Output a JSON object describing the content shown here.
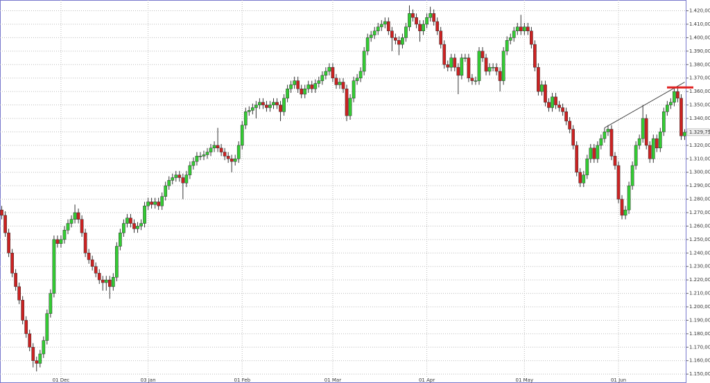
{
  "chart_data": {
    "type": "candlestick",
    "colors": {
      "up": "#33cc33",
      "down": "#cc2222"
    },
    "ylim": [
      1147,
      1428
    ],
    "grid": true,
    "yticks": [
      {
        "value": 1150,
        "label": "1.150,00"
      },
      {
        "value": 1160,
        "label": "1.160,00"
      },
      {
        "value": 1170,
        "label": "1.170,00"
      },
      {
        "value": 1180,
        "label": "1.180,00"
      },
      {
        "value": 1190,
        "label": "1.190,00"
      },
      {
        "value": 1200,
        "label": "1.200,00"
      },
      {
        "value": 1210,
        "label": "1.210,00"
      },
      {
        "value": 1220,
        "label": "1.220,00"
      },
      {
        "value": 1230,
        "label": "1.230,00"
      },
      {
        "value": 1240,
        "label": "1.240,00"
      },
      {
        "value": 1250,
        "label": "1.250,00"
      },
      {
        "value": 1260,
        "label": "1.260,00"
      },
      {
        "value": 1270,
        "label": "1.270,00"
      },
      {
        "value": 1280,
        "label": "1.280,00"
      },
      {
        "value": 1290,
        "label": "1.290,00"
      },
      {
        "value": 1300,
        "label": "1.300,00"
      },
      {
        "value": 1310,
        "label": "1.310,00"
      },
      {
        "value": 1320,
        "label": "1.320,00"
      },
      {
        "value": 1330,
        "label": "1.330,00"
      },
      {
        "value": 1340,
        "label": "1.340,00"
      },
      {
        "value": 1350,
        "label": "1.350,00"
      },
      {
        "value": 1360,
        "label": "1.360,00"
      },
      {
        "value": 1370,
        "label": "1.370,00"
      },
      {
        "value": 1380,
        "label": "1.380,00"
      },
      {
        "value": 1390,
        "label": "1.390,00"
      },
      {
        "value": 1400,
        "label": "1.400,00"
      },
      {
        "value": 1410,
        "label": "1.410,00"
      },
      {
        "value": 1420,
        "label": "1.420,00"
      }
    ],
    "last_price": {
      "value": 1329.75,
      "label": "1.329,75"
    },
    "resistance_line": 1363,
    "trend_line": {
      "from": [
        173,
        1333
      ],
      "to": [
        196,
        1367
      ]
    },
    "categories": [
      null,
      null,
      null,
      null,
      null,
      null,
      null,
      null,
      null,
      null,
      null,
      null,
      null,
      null,
      null,
      null,
      null,
      "01 Dec",
      null,
      null,
      null,
      null,
      null,
      null,
      null,
      null,
      null,
      null,
      null,
      null,
      null,
      null,
      null,
      null,
      null,
      null,
      null,
      null,
      null,
      null,
      null,
      null,
      "03 Jan",
      null,
      null,
      null,
      null,
      null,
      null,
      null,
      null,
      null,
      null,
      null,
      null,
      null,
      null,
      null,
      null,
      null,
      null,
      null,
      null,
      null,
      null,
      null,
      null,
      null,
      null,
      "01 Feb",
      null,
      null,
      null,
      null,
      null,
      null,
      null,
      null,
      null,
      null,
      null,
      null,
      null,
      null,
      null,
      null,
      null,
      null,
      null,
      null,
      null,
      null,
      null,
      null,
      null,
      "01 Mar",
      null,
      null,
      null,
      null,
      null,
      null,
      null,
      null,
      null,
      null,
      null,
      null,
      null,
      null,
      null,
      null,
      null,
      null,
      null,
      null,
      null,
      null,
      null,
      null,
      null,
      null,
      "01 Apr",
      null,
      null,
      null,
      null,
      null,
      null,
      null,
      null,
      null,
      null,
      null,
      null,
      null,
      null,
      null,
      null,
      null,
      null,
      null,
      null,
      null,
      null,
      null,
      null,
      null,
      null,
      null,
      "01 May",
      null,
      null,
      null,
      null,
      null,
      null,
      null,
      null,
      null,
      null,
      null,
      null,
      null,
      null,
      null,
      null,
      null,
      null,
      null,
      null,
      null,
      null,
      null,
      null,
      null,
      null,
      "01 Jun",
      null,
      null,
      null,
      null,
      null,
      null,
      null,
      null,
      null,
      null,
      null,
      null,
      null,
      null,
      null,
      null,
      null,
      null,
      null
    ],
    "candles": [
      [
        1272,
        1275,
        1265,
        1268
      ],
      [
        1268,
        1271,
        1252,
        1255
      ],
      [
        1255,
        1258,
        1237,
        1240
      ],
      [
        1240,
        1243,
        1222,
        1225
      ],
      [
        1225,
        1228,
        1212,
        1215
      ],
      [
        1215,
        1218,
        1202,
        1205
      ],
      [
        1205,
        1208,
        1187,
        1190
      ],
      [
        1190,
        1193,
        1177,
        1180
      ],
      [
        1180,
        1183,
        1167,
        1170
      ],
      [
        1170,
        1173,
        1155,
        1160
      ],
      [
        1160,
        1163,
        1152,
        1158
      ],
      [
        1158,
        1168,
        1155,
        1165
      ],
      [
        1165,
        1178,
        1162,
        1175
      ],
      [
        1175,
        1198,
        1172,
        1195
      ],
      [
        1195,
        1213,
        1192,
        1210
      ],
      [
        1210,
        1253,
        1207,
        1250
      ],
      [
        1250,
        1253,
        1244,
        1247
      ],
      [
        1247,
        1253,
        1244,
        1250
      ],
      [
        1250,
        1260,
        1247,
        1257
      ],
      [
        1257,
        1265,
        1254,
        1262
      ],
      [
        1262,
        1268,
        1259,
        1265
      ],
      [
        1265,
        1276,
        1262,
        1270
      ],
      [
        1270,
        1273,
        1262,
        1265
      ],
      [
        1265,
        1268,
        1252,
        1255
      ],
      [
        1255,
        1258,
        1237,
        1240
      ],
      [
        1240,
        1243,
        1232,
        1235
      ],
      [
        1235,
        1238,
        1227,
        1230
      ],
      [
        1230,
        1233,
        1222,
        1225
      ],
      [
        1225,
        1228,
        1217,
        1220
      ],
      [
        1220,
        1223,
        1212,
        1218
      ],
      [
        1218,
        1223,
        1212,
        1220
      ],
      [
        1220,
        1223,
        1206,
        1215
      ],
      [
        1215,
        1225,
        1212,
        1222
      ],
      [
        1222,
        1248,
        1219,
        1245
      ],
      [
        1245,
        1258,
        1242,
        1255
      ],
      [
        1255,
        1265,
        1252,
        1262
      ],
      [
        1262,
        1269,
        1259,
        1266
      ],
      [
        1266,
        1269,
        1259,
        1262
      ],
      [
        1262,
        1265,
        1255,
        1258
      ],
      [
        1258,
        1263,
        1255,
        1260
      ],
      [
        1260,
        1265,
        1257,
        1262
      ],
      [
        1262,
        1278,
        1259,
        1275
      ],
      [
        1275,
        1281,
        1272,
        1278
      ],
      [
        1278,
        1281,
        1273,
        1276
      ],
      [
        1276,
        1281,
        1273,
        1278
      ],
      [
        1278,
        1281,
        1272,
        1275
      ],
      [
        1275,
        1285,
        1272,
        1282
      ],
      [
        1282,
        1293,
        1279,
        1290
      ],
      [
        1290,
        1297,
        1287,
        1294
      ],
      [
        1294,
        1299,
        1291,
        1296
      ],
      [
        1296,
        1301,
        1293,
        1298
      ],
      [
        1298,
        1301,
        1293,
        1296
      ],
      [
        1296,
        1299,
        1280,
        1292
      ],
      [
        1292,
        1301,
        1289,
        1298
      ],
      [
        1298,
        1308,
        1295,
        1305
      ],
      [
        1305,
        1311,
        1302,
        1308
      ],
      [
        1308,
        1315,
        1305,
        1312
      ],
      [
        1312,
        1315,
        1309,
        1312
      ],
      [
        1312,
        1316,
        1309,
        1313
      ],
      [
        1313,
        1318,
        1310,
        1315
      ],
      [
        1315,
        1321,
        1312,
        1318
      ],
      [
        1318,
        1323,
        1315,
        1320
      ],
      [
        1320,
        1333,
        1315,
        1318
      ],
      [
        1318,
        1321,
        1312,
        1315
      ],
      [
        1315,
        1318,
        1309,
        1312
      ],
      [
        1312,
        1315,
        1307,
        1310
      ],
      [
        1310,
        1313,
        1300,
        1308
      ],
      [
        1308,
        1313,
        1305,
        1310
      ],
      [
        1310,
        1323,
        1307,
        1320
      ],
      [
        1320,
        1338,
        1317,
        1335
      ],
      [
        1335,
        1348,
        1332,
        1345
      ],
      [
        1345,
        1349,
        1342,
        1346
      ],
      [
        1346,
        1351,
        1343,
        1348
      ],
      [
        1348,
        1353,
        1340,
        1350
      ],
      [
        1350,
        1355,
        1347,
        1352
      ],
      [
        1352,
        1355,
        1347,
        1350
      ],
      [
        1350,
        1353,
        1345,
        1348
      ],
      [
        1348,
        1353,
        1345,
        1350
      ],
      [
        1350,
        1355,
        1347,
        1352
      ],
      [
        1352,
        1355,
        1347,
        1350
      ],
      [
        1350,
        1353,
        1338,
        1345
      ],
      [
        1345,
        1358,
        1342,
        1355
      ],
      [
        1355,
        1365,
        1352,
        1362
      ],
      [
        1362,
        1368,
        1359,
        1365
      ],
      [
        1365,
        1371,
        1362,
        1368
      ],
      [
        1368,
        1371,
        1359,
        1362
      ],
      [
        1362,
        1365,
        1355,
        1358
      ],
      [
        1358,
        1365,
        1355,
        1362
      ],
      [
        1362,
        1368,
        1359,
        1365
      ],
      [
        1365,
        1368,
        1359,
        1362
      ],
      [
        1362,
        1369,
        1359,
        1366
      ],
      [
        1366,
        1371,
        1363,
        1368
      ],
      [
        1368,
        1375,
        1365,
        1372
      ],
      [
        1372,
        1378,
        1369,
        1375
      ],
      [
        1375,
        1381,
        1372,
        1378
      ],
      [
        1378,
        1381,
        1367,
        1370
      ],
      [
        1370,
        1373,
        1362,
        1365
      ],
      [
        1365,
        1370,
        1362,
        1367
      ],
      [
        1367,
        1370,
        1359,
        1362
      ],
      [
        1362,
        1365,
        1338,
        1342
      ],
      [
        1342,
        1358,
        1339,
        1355
      ],
      [
        1355,
        1371,
        1352,
        1368
      ],
      [
        1368,
        1373,
        1365,
        1370
      ],
      [
        1370,
        1378,
        1367,
        1375
      ],
      [
        1375,
        1393,
        1372,
        1390
      ],
      [
        1390,
        1403,
        1387,
        1400
      ],
      [
        1400,
        1405,
        1397,
        1402
      ],
      [
        1402,
        1408,
        1399,
        1405
      ],
      [
        1405,
        1411,
        1402,
        1408
      ],
      [
        1408,
        1413,
        1405,
        1410
      ],
      [
        1410,
        1415,
        1407,
        1412
      ],
      [
        1412,
        1415,
        1402,
        1405
      ],
      [
        1405,
        1408,
        1390,
        1400
      ],
      [
        1400,
        1403,
        1395,
        1398
      ],
      [
        1398,
        1401,
        1387,
        1395
      ],
      [
        1395,
        1403,
        1392,
        1400
      ],
      [
        1400,
        1411,
        1397,
        1408
      ],
      [
        1408,
        1424,
        1405,
        1418
      ],
      [
        1418,
        1421,
        1412,
        1415
      ],
      [
        1415,
        1418,
        1407,
        1410
      ],
      [
        1410,
        1413,
        1397,
        1405
      ],
      [
        1405,
        1413,
        1402,
        1410
      ],
      [
        1410,
        1418,
        1407,
        1415
      ],
      [
        1415,
        1423,
        1412,
        1418
      ],
      [
        1418,
        1421,
        1409,
        1412
      ],
      [
        1412,
        1415,
        1402,
        1405
      ],
      [
        1405,
        1408,
        1392,
        1395
      ],
      [
        1395,
        1398,
        1377,
        1380
      ],
      [
        1380,
        1383,
        1375,
        1378
      ],
      [
        1378,
        1388,
        1375,
        1385
      ],
      [
        1385,
        1388,
        1375,
        1378
      ],
      [
        1378,
        1381,
        1358,
        1372
      ],
      [
        1372,
        1388,
        1369,
        1385
      ],
      [
        1385,
        1388,
        1382,
        1385
      ],
      [
        1385,
        1388,
        1367,
        1370
      ],
      [
        1370,
        1373,
        1365,
        1368
      ],
      [
        1368,
        1371,
        1365,
        1368
      ],
      [
        1368,
        1393,
        1365,
        1390
      ],
      [
        1390,
        1393,
        1382,
        1385
      ],
      [
        1385,
        1388,
        1372,
        1375
      ],
      [
        1375,
        1381,
        1372,
        1378
      ],
      [
        1378,
        1381,
        1375,
        1378
      ],
      [
        1378,
        1381,
        1372,
        1375
      ],
      [
        1375,
        1378,
        1360,
        1368
      ],
      [
        1368,
        1393,
        1365,
        1390
      ],
      [
        1390,
        1401,
        1387,
        1398
      ],
      [
        1398,
        1403,
        1395,
        1400
      ],
      [
        1400,
        1408,
        1397,
        1405
      ],
      [
        1405,
        1411,
        1402,
        1408
      ],
      [
        1408,
        1417,
        1402,
        1405
      ],
      [
        1405,
        1411,
        1402,
        1408
      ],
      [
        1408,
        1411,
        1402,
        1405
      ],
      [
        1405,
        1408,
        1392,
        1395
      ],
      [
        1395,
        1398,
        1375,
        1378
      ],
      [
        1378,
        1381,
        1357,
        1360
      ],
      [
        1360,
        1368,
        1357,
        1365
      ],
      [
        1365,
        1368,
        1349,
        1352
      ],
      [
        1352,
        1355,
        1345,
        1348
      ],
      [
        1348,
        1359,
        1345,
        1356
      ],
      [
        1356,
        1359,
        1347,
        1350
      ],
      [
        1350,
        1353,
        1345,
        1348
      ],
      [
        1348,
        1351,
        1342,
        1345
      ],
      [
        1345,
        1348,
        1335,
        1338
      ],
      [
        1338,
        1341,
        1329,
        1332
      ],
      [
        1332,
        1335,
        1317,
        1320
      ],
      [
        1320,
        1323,
        1297,
        1300
      ],
      [
        1300,
        1303,
        1289,
        1292
      ],
      [
        1292,
        1301,
        1289,
        1298
      ],
      [
        1298,
        1313,
        1295,
        1310
      ],
      [
        1310,
        1321,
        1307,
        1318
      ],
      [
        1318,
        1321,
        1307,
        1310
      ],
      [
        1310,
        1323,
        1307,
        1320
      ],
      [
        1320,
        1328,
        1317,
        1325
      ],
      [
        1325,
        1333,
        1322,
        1330
      ],
      [
        1330,
        1335,
        1327,
        1332
      ],
      [
        1332,
        1335,
        1309,
        1312
      ],
      [
        1312,
        1315,
        1302,
        1305
      ],
      [
        1305,
        1308,
        1277,
        1280
      ],
      [
        1280,
        1283,
        1265,
        1268
      ],
      [
        1268,
        1275,
        1265,
        1272
      ],
      [
        1272,
        1293,
        1269,
        1290
      ],
      [
        1290,
        1308,
        1287,
        1305
      ],
      [
        1305,
        1323,
        1302,
        1320
      ],
      [
        1320,
        1328,
        1317,
        1325
      ],
      [
        1325,
        1350,
        1322,
        1340
      ],
      [
        1340,
        1343,
        1317,
        1320
      ],
      [
        1320,
        1323,
        1307,
        1310
      ],
      [
        1310,
        1328,
        1307,
        1325
      ],
      [
        1325,
        1328,
        1315,
        1318
      ],
      [
        1318,
        1333,
        1315,
        1330
      ],
      [
        1330,
        1348,
        1327,
        1345
      ],
      [
        1345,
        1353,
        1342,
        1350
      ],
      [
        1350,
        1355,
        1347,
        1352
      ],
      [
        1352,
        1363,
        1349,
        1360
      ],
      [
        1360,
        1363,
        1352,
        1355
      ],
      [
        1355,
        1358,
        1324,
        1327
      ],
      [
        1327,
        1332,
        1324,
        1329.75
      ]
    ]
  }
}
